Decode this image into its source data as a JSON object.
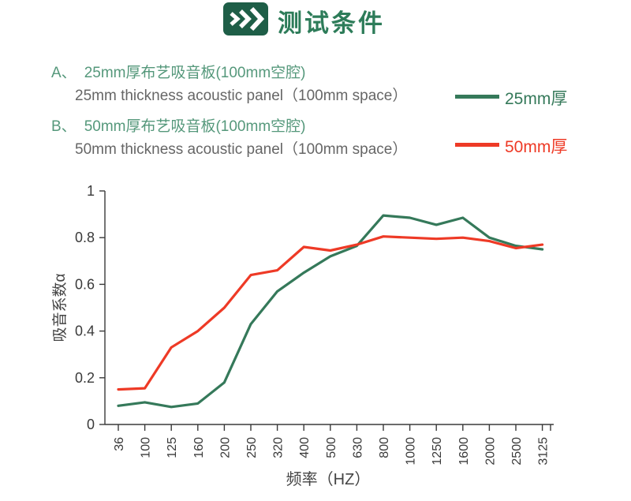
{
  "header": {
    "title": "测试条件",
    "icon": "triple-chevron-right-icon",
    "icon_bg": "#1e5e47",
    "title_color": "#2d7c59"
  },
  "conditions": [
    {
      "prefix": "A、",
      "zh": "25mm厚布艺吸音板(100mm空腔)",
      "en": "25mm thickness acoustic panel（100mm space）"
    },
    {
      "prefix": "B、",
      "zh": "50mm厚布艺吸音板(100mm空腔)",
      "en": "50mm thickness acoustic panel（100mm space）"
    }
  ],
  "legend": {
    "items": [
      {
        "label": "25mm厚",
        "color": "#35795a"
      },
      {
        "label": "50mm厚",
        "color": "#ee3a26"
      }
    ]
  },
  "chart_data": {
    "type": "line",
    "categories": [
      "36",
      "100",
      "125",
      "160",
      "200",
      "250",
      "320",
      "400",
      "500",
      "630",
      "800",
      "1000",
      "1250",
      "1600",
      "2000",
      "2500",
      "3125"
    ],
    "series": [
      {
        "name": "25mm厚",
        "color": "#35795a",
        "values": [
          0.08,
          0.095,
          0.075,
          0.09,
          0.18,
          0.43,
          0.57,
          0.65,
          0.72,
          0.765,
          0.895,
          0.885,
          0.855,
          0.885,
          0.8,
          0.765,
          0.75
        ]
      },
      {
        "name": "50mm厚",
        "color": "#ee3a26",
        "values": [
          0.15,
          0.155,
          0.33,
          0.4,
          0.5,
          0.64,
          0.66,
          0.76,
          0.745,
          0.77,
          0.805,
          0.8,
          0.795,
          0.8,
          0.785,
          0.755,
          0.77
        ]
      }
    ],
    "title": "",
    "xlabel": "频率（HZ）",
    "ylabel": "吸音系数α",
    "ylim": [
      0,
      1
    ],
    "yticks": [
      0,
      0.2,
      0.4,
      0.6,
      0.8,
      1
    ],
    "grid": false,
    "axis_color": "#3a3a3a",
    "legend_position": "upper-right-outside",
    "x_tick_label_rotation": -90
  }
}
